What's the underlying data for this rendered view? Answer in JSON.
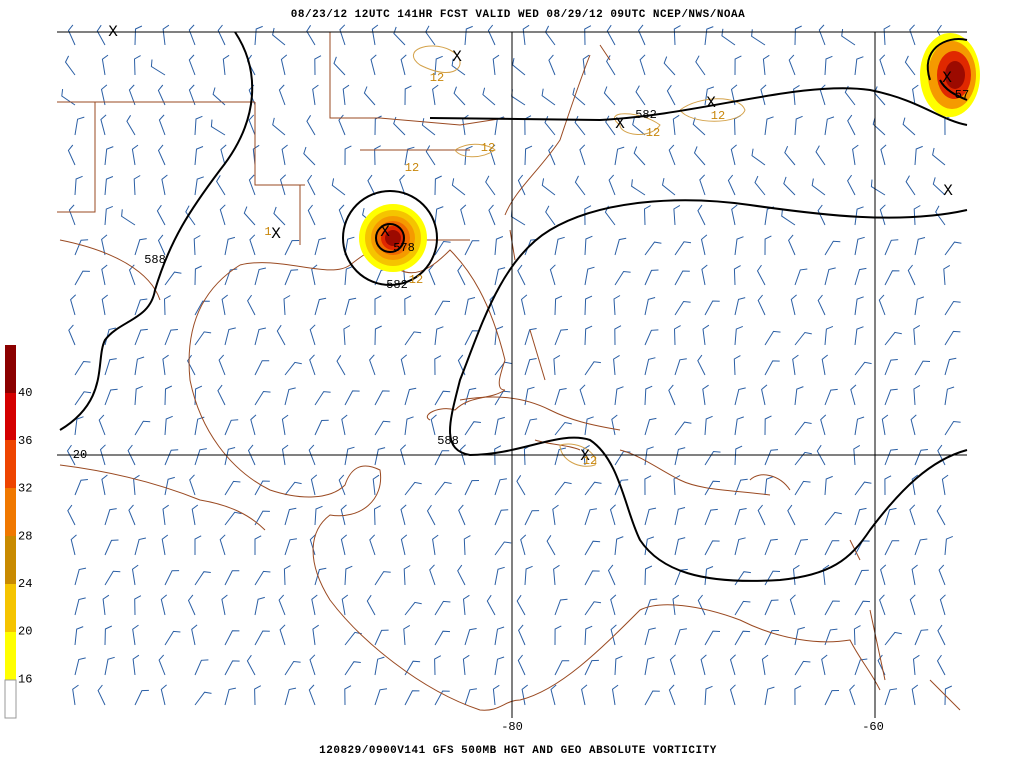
{
  "header": {
    "title": "08/23/12 12UTC  141HR  FCST VALID WED 08/29/12 09UTC  NCEP/NWS/NOAA"
  },
  "footer": {
    "caption": "120829/0900V141 GFS 500MB HGT AND GEO ABSOLUTE VORTICITY"
  },
  "colorbar": {
    "labels": [
      "40",
      "36",
      "32",
      "28",
      "24",
      "20",
      "16"
    ]
  },
  "grid_labels": {
    "lat": "20",
    "lon_west": "-80",
    "lon_east": "-60"
  },
  "contour_labels": {
    "h588_west": "588",
    "h582_gulf": "582",
    "h578_gulf": "578",
    "h588_south": "588",
    "h582_atlantic": "582",
    "h57_east": "57",
    "v12_a": "12",
    "v12_b": "12",
    "v12_c": "12",
    "v12_d": "12",
    "v12_e": "12",
    "v12_f": "12",
    "v12_g": "12",
    "v12_h": "1"
  }
}
